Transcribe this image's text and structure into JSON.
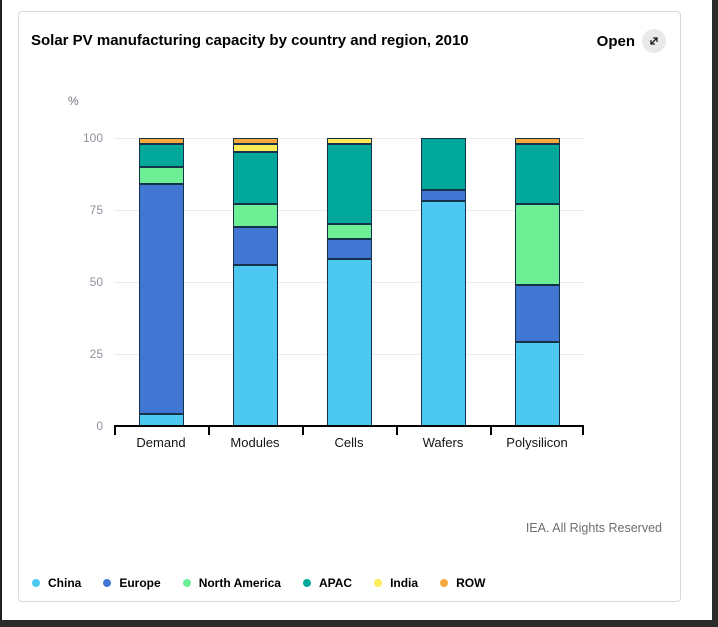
{
  "header": {
    "title": "Solar PV manufacturing capacity by country and region, 2010",
    "open_label": "Open",
    "open_icon": "expand-diagonal-arrow-icon"
  },
  "chart_data": {
    "type": "bar",
    "stacked": true,
    "title": "Solar PV manufacturing capacity by country and region, 2010",
    "unit_label": "%",
    "xlabel": "",
    "ylabel": "%",
    "ylim": [
      0,
      100
    ],
    "yticks": [
      0,
      25,
      50,
      75,
      100
    ],
    "grid": true,
    "legend_position": "bottom",
    "categories": [
      "Demand",
      "Modules",
      "Cells",
      "Wafers",
      "Polysilicon"
    ],
    "series": [
      {
        "name": "China",
        "color": "#4DC9F1",
        "values": [
          4,
          56,
          58,
          78,
          29
        ]
      },
      {
        "name": "Europe",
        "color": "#4176D2",
        "values": [
          80,
          13,
          7,
          4,
          20
        ]
      },
      {
        "name": "North America",
        "color": "#6CEF95",
        "values": [
          6,
          8,
          5,
          0,
          28
        ]
      },
      {
        "name": "APAC",
        "color": "#00A89B",
        "values": [
          8,
          18,
          28,
          18,
          21
        ]
      },
      {
        "name": "India",
        "color": "#FFEB57",
        "values": [
          0,
          3,
          2,
          0,
          0
        ]
      },
      {
        "name": "ROW",
        "color": "#F7A93B",
        "values": [
          2,
          2,
          0,
          0,
          2
        ]
      }
    ],
    "segment_border_color": "#16324a"
  },
  "footer": {
    "copyright": "IEA. All Rights Reserved"
  }
}
